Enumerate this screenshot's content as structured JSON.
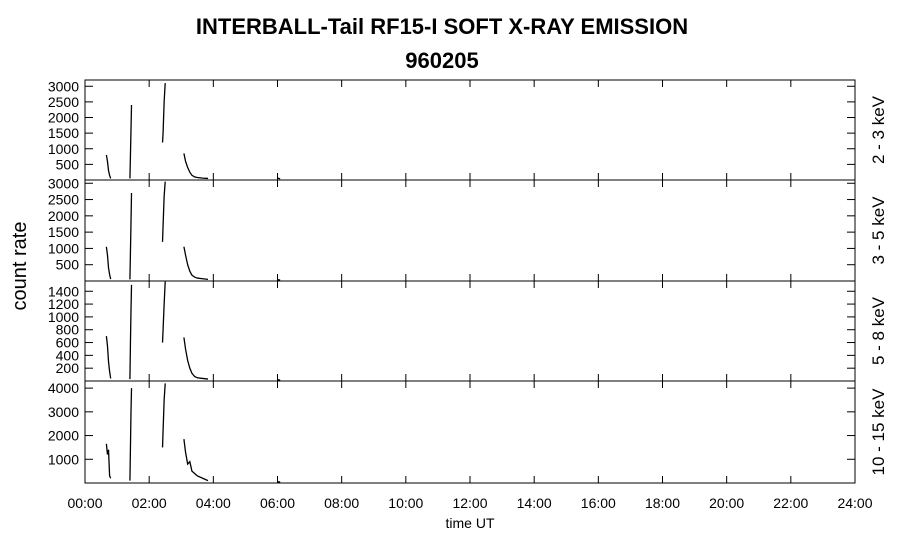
{
  "chart_data": [
    {
      "type": "line",
      "title": "INTERBALL-Tail RF15-I SOFT X-RAY EMISSION",
      "subtitle": "960205",
      "ylabel": "count rate",
      "label": "2 - 3 keV",
      "x": [
        "00:40",
        "00:42",
        "00:44",
        "00:46",
        "00:48",
        "01:00",
        "01:24",
        "01:25",
        "01:26",
        "01:27",
        "02:00",
        "02:25",
        "02:26",
        "02:28",
        "02:30",
        "02:45",
        "03:05",
        "03:08",
        "03:12",
        "03:16",
        "03:20",
        "03:25",
        "03:30",
        "03:40",
        "03:50",
        "04:00",
        "06:00",
        "06:05"
      ],
      "values": [
        800,
        600,
        300,
        150,
        50,
        null,
        50,
        800,
        1600,
        2400,
        null,
        1200,
        1500,
        2500,
        3100,
        null,
        850,
        600,
        400,
        250,
        150,
        100,
        80,
        60,
        50,
        null,
        60,
        40
      ],
      "color": "#000000",
      "ylim": [
        0,
        3200
      ],
      "yticks": [
        500,
        1000,
        1500,
        2000,
        2500,
        3000
      ]
    },
    {
      "type": "line",
      "label": "3 - 5 keV",
      "x": [
        "00:40",
        "00:42",
        "00:44",
        "00:46",
        "00:48",
        "01:00",
        "01:24",
        "01:25",
        "01:26",
        "01:27",
        "02:00",
        "02:25",
        "02:26",
        "02:28",
        "02:30",
        "02:45",
        "03:05",
        "03:08",
        "03:12",
        "03:16",
        "03:20",
        "03:25",
        "03:30",
        "03:40",
        "03:50",
        "04:00",
        "06:00",
        "06:05"
      ],
      "values": [
        1050,
        800,
        400,
        200,
        60,
        null,
        50,
        900,
        1800,
        2700,
        null,
        1200,
        1700,
        2600,
        3050,
        null,
        1050,
        800,
        500,
        300,
        180,
        120,
        90,
        70,
        50,
        null,
        40,
        30
      ],
      "color": "#000000",
      "ylim": [
        0,
        3100
      ],
      "yticks": [
        500,
        1000,
        1500,
        2000,
        2500,
        3000
      ]
    },
    {
      "type": "line",
      "label": "5 - 8 keV",
      "x": [
        "00:40",
        "00:42",
        "00:44",
        "00:46",
        "00:48",
        "01:00",
        "01:24",
        "01:25",
        "01:26",
        "01:27",
        "02:00",
        "02:25",
        "02:26",
        "02:28",
        "02:30",
        "02:45",
        "03:05",
        "03:08",
        "03:12",
        "03:16",
        "03:20",
        "03:25",
        "03:30",
        "03:40",
        "03:50",
        "04:00",
        "06:00",
        "06:05"
      ],
      "values": [
        700,
        550,
        300,
        150,
        40,
        null,
        30,
        600,
        1100,
        1500,
        null,
        600,
        800,
        1200,
        1550,
        null,
        680,
        500,
        320,
        200,
        120,
        70,
        50,
        40,
        30,
        null,
        20,
        15
      ],
      "color": "#000000",
      "ylim": [
        0,
        1560
      ],
      "yticks": [
        200,
        400,
        600,
        800,
        1000,
        1200,
        1400
      ]
    },
    {
      "type": "line",
      "label": "10 - 15 keV",
      "xlabel": "time UT",
      "x": [
        "00:40",
        "00:42",
        "00:44",
        "00:46",
        "00:48",
        "01:00",
        "01:24",
        "01:25",
        "01:26",
        "01:27",
        "02:00",
        "02:25",
        "02:26",
        "02:28",
        "02:30",
        "02:45",
        "03:05",
        "03:08",
        "03:12",
        "03:16",
        "03:20",
        "03:25",
        "03:30",
        "03:40",
        "03:50",
        "04:00",
        "06:00",
        "06:05"
      ],
      "values": [
        1650,
        1200,
        1400,
        300,
        200,
        null,
        100,
        1500,
        3000,
        4000,
        null,
        1500,
        2200,
        3500,
        4200,
        null,
        1850,
        1300,
        800,
        900,
        500,
        400,
        300,
        200,
        100,
        null,
        60,
        40
      ],
      "color": "#000000",
      "ylim": [
        0,
        4300
      ],
      "yticks": [
        1000,
        2000,
        3000,
        4000
      ],
      "xlim": [
        "00:00",
        "24:00"
      ],
      "xticks": [
        "00:00",
        "02:00",
        "04:00",
        "06:00",
        "08:00",
        "10:00",
        "12:00",
        "14:00",
        "16:00",
        "18:00",
        "20:00",
        "22:00",
        "24:00"
      ]
    }
  ]
}
